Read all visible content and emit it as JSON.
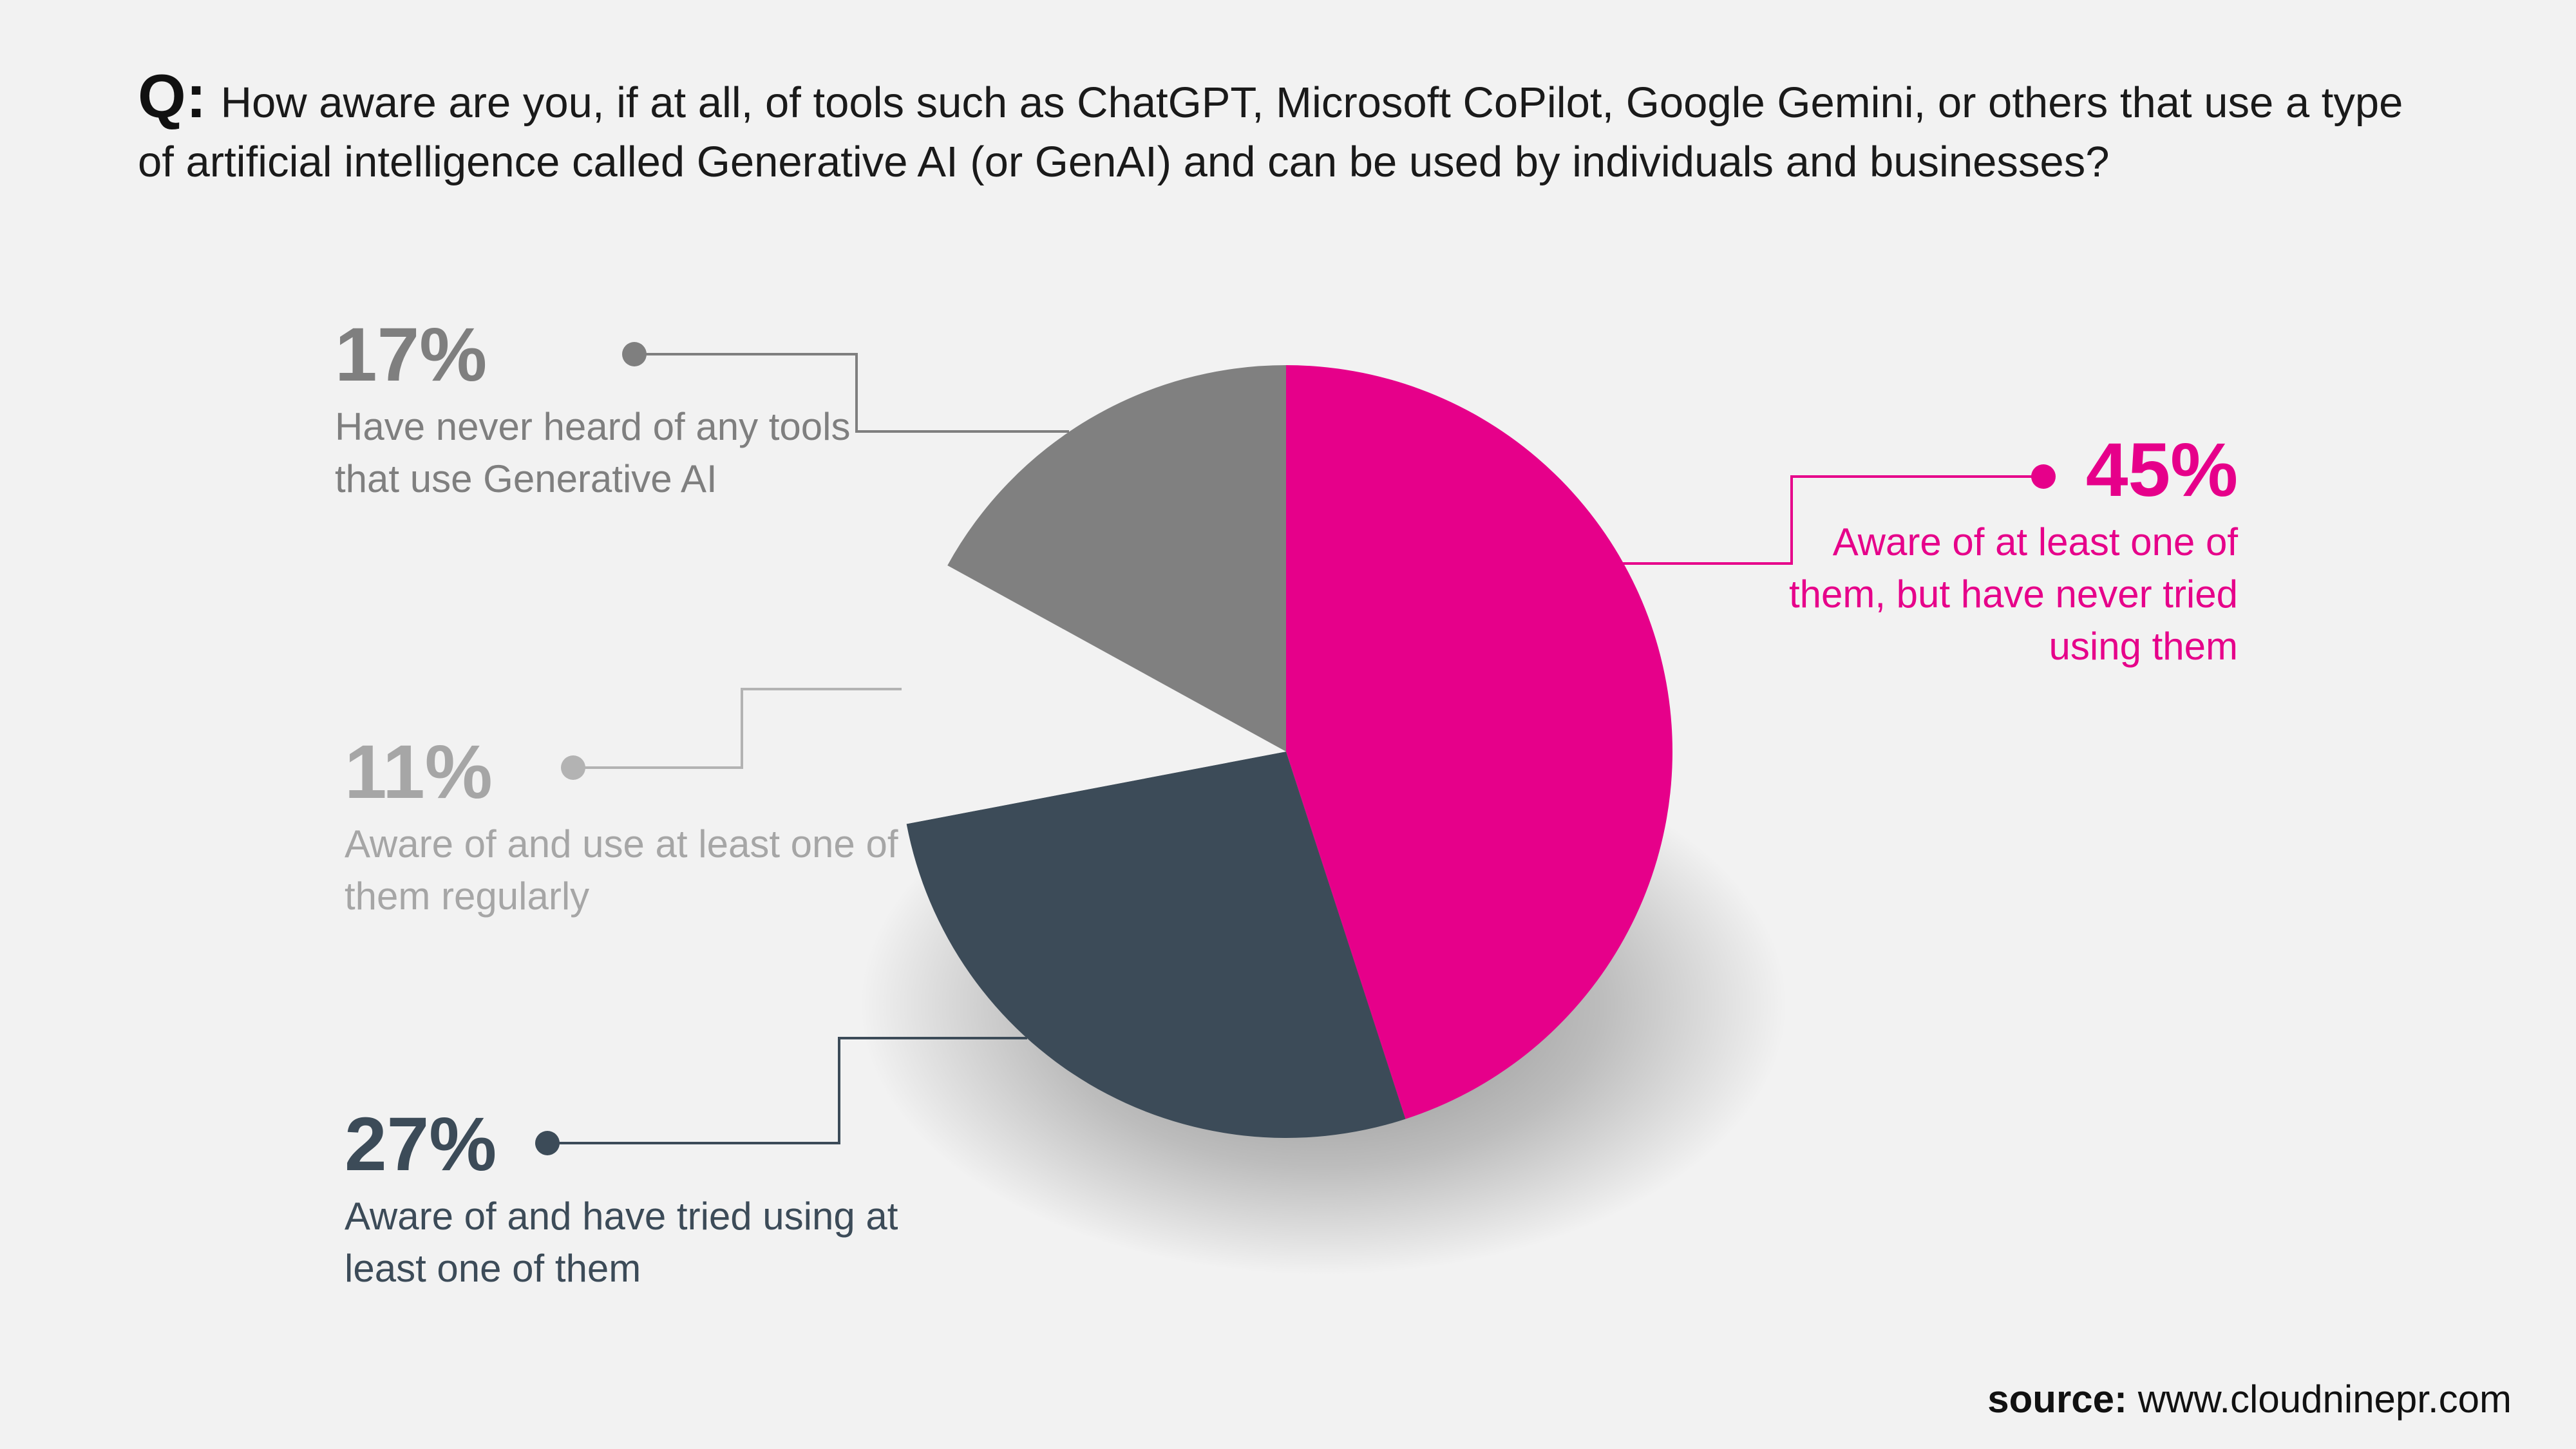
{
  "question": {
    "prefix": "Q:",
    "text": "How aware are you, if at all, of tools such as ChatGPT, Microsoft CoPilot, Google Gemini, or others that use a type of artificial intelligence called Generative AI (or GenAI) and can be used by individuals and businesses?"
  },
  "chart_data": {
    "type": "pie",
    "title": "",
    "slices": [
      {
        "key": "aware_never_tried",
        "label": "Aware of at least one of them, but have never tried using them",
        "value": 45,
        "display": "45%",
        "color": "#e6008a"
      },
      {
        "key": "tried",
        "label": "Aware of and have tried using at least one of them",
        "value": 27,
        "display": "27%",
        "color": "#3c4b58"
      },
      {
        "key": "regular",
        "label": "Aware of and use at least one of them regularly",
        "value": 11,
        "display": "11%",
        "color": "#f2f2f2"
      },
      {
        "key": "never_heard",
        "label": "Have never heard of any tools that use Generative AI",
        "value": 17,
        "display": "17%",
        "color": "#808080"
      }
    ]
  },
  "callouts": {
    "never_heard": {
      "pct": "17%",
      "desc": "Have never heard of any tools that use Generative AI",
      "color": "#7f7f7f"
    },
    "regular": {
      "pct": "11%",
      "desc": "Aware of and use at least one of them regularly",
      "color": "#a6a6a6"
    },
    "tried": {
      "pct": "27%",
      "desc": "Aware of and have tried using at least one of them",
      "color": "#3c4b58"
    },
    "aware_never_tried": {
      "pct": "45%",
      "desc": "Aware of at least one of them, but have never tried using them",
      "color": "#e6008a"
    }
  },
  "source": {
    "label": "source:",
    "url": "www.cloudninepr.com"
  }
}
